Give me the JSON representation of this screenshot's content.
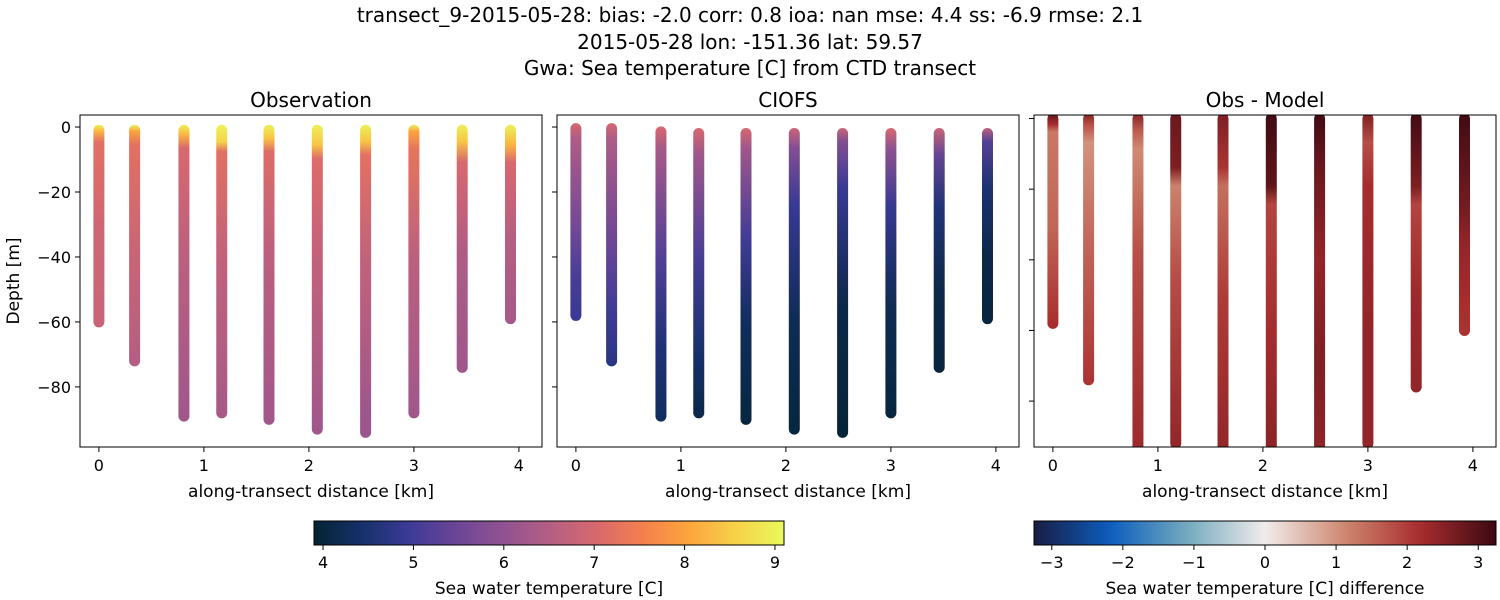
{
  "suptitle": {
    "line1": "transect_9-2015-05-28: bias: -2.0  corr: 0.8  ioa: nan  mse: 4.4  ss: -6.9  rmse: 2.1",
    "line2": "2015-05-28 lon: -151.36 lat: 59.57",
    "line3": "Gwa: Sea temperature [C] from CTD transect"
  },
  "colors": {
    "thermal": [
      "#042333",
      "#15306a",
      "#3b3a96",
      "#6a4596",
      "#8f5291",
      "#b45e83",
      "#d8686e",
      "#f4804d",
      "#fca63c",
      "#f6d24a",
      "#e8fa5b"
    ],
    "balance": [
      "#181c43",
      "#0c5ebe",
      "#75aabe",
      "#f1ecec",
      "#d08b73",
      "#a92d2f",
      "#3c0912"
    ]
  },
  "chart_data": [
    {
      "type": "scatter",
      "title": "Observation",
      "xlabel": "along-transect distance [km]",
      "ylabel": "Depth [m]",
      "xlim": [
        -0.18,
        4.22
      ],
      "ylim": [
        -98.5,
        3.7
      ],
      "xticks": [
        "0",
        "1",
        "2",
        "3",
        "4"
      ],
      "yticks": [
        "0",
        "−20",
        "−40",
        "−60",
        "−80"
      ],
      "colormap": "thermal",
      "clim": [
        3.9,
        9.1
      ],
      "stations": [
        {
          "x": 0.0,
          "profile": [
            [
              -1,
              9.0
            ],
            [
              -3,
              8.2
            ],
            [
              -6,
              7.2
            ],
            [
              -30,
              6.9
            ],
            [
              -60,
              6.8
            ]
          ]
        },
        {
          "x": 0.34,
          "profile": [
            [
              -1,
              9.0
            ],
            [
              -3,
              8.0
            ],
            [
              -7,
              7.2
            ],
            [
              -40,
              6.8
            ],
            [
              -72,
              6.5
            ]
          ]
        },
        {
          "x": 0.81,
          "profile": [
            [
              -1,
              9.0
            ],
            [
              -4,
              8.2
            ],
            [
              -8,
              7.0
            ],
            [
              -40,
              6.6
            ],
            [
              -89,
              6.2
            ]
          ]
        },
        {
          "x": 1.17,
          "profile": [
            [
              -1,
              9.0
            ],
            [
              -6,
              8.6
            ],
            [
              -9,
              7.2
            ],
            [
              -40,
              6.7
            ],
            [
              -88,
              6.3
            ]
          ]
        },
        {
          "x": 1.62,
          "profile": [
            [
              -1,
              9.0
            ],
            [
              -5,
              8.4
            ],
            [
              -9,
              7.1
            ],
            [
              -40,
              6.6
            ],
            [
              -90,
              6.2
            ]
          ]
        },
        {
          "x": 2.08,
          "profile": [
            [
              -1,
              9.0
            ],
            [
              -7,
              8.4
            ],
            [
              -11,
              7.1
            ],
            [
              -40,
              6.7
            ],
            [
              -93,
              6.2
            ]
          ]
        },
        {
          "x": 2.54,
          "profile": [
            [
              -1,
              9.0
            ],
            [
              -6,
              8.4
            ],
            [
              -10,
              7.2
            ],
            [
              -40,
              6.7
            ],
            [
              -94,
              6.1
            ]
          ]
        },
        {
          "x": 3.0,
          "profile": [
            [
              -1,
              9.0
            ],
            [
              -3,
              8.0
            ],
            [
              -8,
              7.3
            ],
            [
              -40,
              6.6
            ],
            [
              -88,
              6.2
            ]
          ]
        },
        {
          "x": 3.46,
          "profile": [
            [
              -1,
              9.0
            ],
            [
              -6,
              8.4
            ],
            [
              -12,
              7.0
            ],
            [
              -40,
              6.4
            ],
            [
              -74,
              6.2
            ]
          ]
        },
        {
          "x": 3.92,
          "profile": [
            [
              -1,
              9.0
            ],
            [
              -7,
              8.2
            ],
            [
              -12,
              7.0
            ],
            [
              -35,
              6.5
            ],
            [
              -59,
              6.3
            ]
          ]
        }
      ]
    },
    {
      "type": "scatter",
      "title": "CIOFS",
      "xlabel": "along-transect distance [km]",
      "ylabel": "",
      "xlim": [
        -0.18,
        4.22
      ],
      "ylim": [
        -98.5,
        3.7
      ],
      "xticks": [
        "0",
        "1",
        "2",
        "3",
        "4"
      ],
      "yticks": [],
      "colormap": "thermal",
      "clim": [
        3.9,
        9.1
      ],
      "stations": [
        {
          "x": 0.0,
          "profile": [
            [
              -0.5,
              7.0
            ],
            [
              -5,
              6.4
            ],
            [
              -30,
              5.6
            ],
            [
              -45,
              5.1
            ],
            [
              -58,
              4.9
            ]
          ]
        },
        {
          "x": 0.34,
          "profile": [
            [
              -0.5,
              7.0
            ],
            [
              -5,
              6.4
            ],
            [
              -35,
              5.5
            ],
            [
              -55,
              5.0
            ],
            [
              -72,
              4.7
            ]
          ]
        },
        {
          "x": 0.81,
          "profile": [
            [
              -1.5,
              7.0
            ],
            [
              -8,
              6.3
            ],
            [
              -40,
              5.2
            ],
            [
              -65,
              4.6
            ],
            [
              -89,
              4.3
            ]
          ]
        },
        {
          "x": 1.17,
          "profile": [
            [
              -2,
              7.0
            ],
            [
              -10,
              6.2
            ],
            [
              -40,
              5.1
            ],
            [
              -70,
              4.4
            ],
            [
              -88,
              4.1
            ]
          ]
        },
        {
          "x": 1.62,
          "profile": [
            [
              -2,
              7.0
            ],
            [
              -8,
              6.2
            ],
            [
              -35,
              5.0
            ],
            [
              -60,
              4.3
            ],
            [
              -90,
              4.0
            ]
          ]
        },
        {
          "x": 2.08,
          "profile": [
            [
              -2,
              6.8
            ],
            [
              -8,
              5.8
            ],
            [
              -25,
              4.9
            ],
            [
              -60,
              4.2
            ],
            [
              -93,
              4.0
            ]
          ]
        },
        {
          "x": 2.54,
          "profile": [
            [
              -2,
              6.8
            ],
            [
              -6,
              5.8
            ],
            [
              -20,
              4.9
            ],
            [
              -55,
              4.1
            ],
            [
              -94,
              3.95
            ]
          ]
        },
        {
          "x": 3.0,
          "profile": [
            [
              -2,
              7.0
            ],
            [
              -8,
              6.0
            ],
            [
              -25,
              4.9
            ],
            [
              -55,
              4.2
            ],
            [
              -88,
              4.0
            ]
          ]
        },
        {
          "x": 3.46,
          "profile": [
            [
              -2,
              6.8
            ],
            [
              -10,
              5.4
            ],
            [
              -25,
              4.6
            ],
            [
              -50,
              4.1
            ],
            [
              -74,
              4.0
            ]
          ]
        },
        {
          "x": 3.92,
          "profile": [
            [
              -2,
              6.6
            ],
            [
              -6,
              5.2
            ],
            [
              -20,
              4.5
            ],
            [
              -40,
              4.1
            ],
            [
              -59,
              4.0
            ]
          ]
        }
      ]
    },
    {
      "type": "scatter",
      "title": "Obs - Model",
      "xlabel": "along-transect distance [km]",
      "ylabel": "",
      "xlim": [
        -0.18,
        4.22
      ],
      "ylim": [
        -93,
        1
      ],
      "xticks": [
        "0",
        "1",
        "2",
        "3",
        "4"
      ],
      "yticks": [],
      "colormap": "balance",
      "clim": [
        -3.25,
        3.25
      ],
      "stations": [
        {
          "x": 0.0,
          "profile": [
            [
              0,
              2.9
            ],
            [
              -3,
              2.2
            ],
            [
              -5,
              1.3
            ],
            [
              -30,
              1.5
            ],
            [
              -58,
              2.2
            ]
          ]
        },
        {
          "x": 0.34,
          "profile": [
            [
              0,
              2.6
            ],
            [
              -3,
              1.8
            ],
            [
              -8,
              1.0
            ],
            [
              -35,
              1.5
            ],
            [
              -74,
              2.1
            ]
          ]
        },
        {
          "x": 0.81,
          "profile": [
            [
              0,
              2.5
            ],
            [
              -5,
              1.6
            ],
            [
              -10,
              1.1
            ],
            [
              -40,
              1.8
            ],
            [
              -93,
              2.3
            ]
          ]
        },
        {
          "x": 1.17,
          "profile": [
            [
              0,
              2.8
            ],
            [
              -15,
              2.6
            ],
            [
              -20,
              1.2
            ],
            [
              -45,
              1.8
            ],
            [
              -92,
              2.4
            ]
          ]
        },
        {
          "x": 1.62,
          "profile": [
            [
              0,
              2.6
            ],
            [
              -15,
              2.1
            ],
            [
              -20,
              1.4
            ],
            [
              -50,
              2.0
            ],
            [
              -94,
              2.4
            ]
          ]
        },
        {
          "x": 2.08,
          "profile": [
            [
              0,
              3.2
            ],
            [
              -20,
              2.9
            ],
            [
              -25,
              1.9
            ],
            [
              -60,
              2.2
            ],
            [
              -97,
              2.5
            ]
          ]
        },
        {
          "x": 2.54,
          "profile": [
            [
              0,
              3.2
            ],
            [
              -15,
              2.8
            ],
            [
              -40,
              2.4
            ],
            [
              -70,
              2.6
            ],
            [
              -97,
              2.4
            ]
          ]
        },
        {
          "x": 3.0,
          "profile": [
            [
              0,
              2.6
            ],
            [
              -8,
              1.8
            ],
            [
              -20,
              2.2
            ],
            [
              -60,
              2.4
            ],
            [
              -92,
              2.4
            ]
          ]
        },
        {
          "x": 3.46,
          "profile": [
            [
              0,
              3.2
            ],
            [
              -20,
              2.6
            ],
            [
              -25,
              1.9
            ],
            [
              -50,
              2.3
            ],
            [
              -76,
              2.4
            ]
          ]
        },
        {
          "x": 3.92,
          "profile": [
            [
              0,
              3.2
            ],
            [
              -25,
              2.7
            ],
            [
              -35,
              2.4
            ],
            [
              -50,
              2.2
            ],
            [
              -60,
              2.1
            ]
          ]
        }
      ]
    }
  ],
  "colorbars": [
    {
      "label": "Sea water temperature [C]",
      "range": [
        3.9,
        9.1
      ],
      "ticks": [
        4,
        5,
        6,
        7,
        8,
        9
      ],
      "colormap": "thermal"
    },
    {
      "label": "Sea water temperature [C] difference",
      "range": [
        -3.25,
        3.25
      ],
      "ticks": [
        -3,
        -2,
        -1,
        0,
        1,
        2,
        3
      ],
      "tick_labels": [
        "−3",
        "−2",
        "−1",
        "0",
        "1",
        "2",
        "3"
      ],
      "colormap": "balance"
    }
  ]
}
